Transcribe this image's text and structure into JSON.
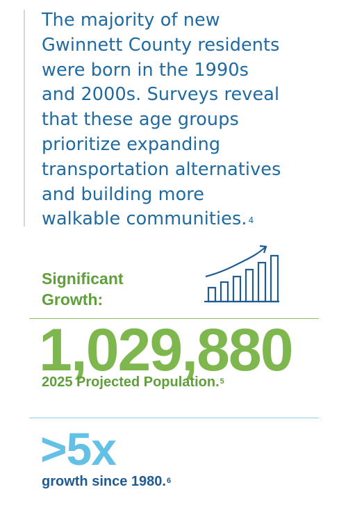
{
  "intro": {
    "lines": [
      "The majority of new",
      "Gwinnett County residents",
      "were born in the 1990s",
      "and 2000s. Surveys reveal",
      "that these age groups",
      "prioritize expanding",
      "transportation alternatives",
      "and building more",
      "walkable communities."
    ],
    "footnote": "4"
  },
  "growth": {
    "label_line1": "Significant",
    "label_line2": "Growth:",
    "icon": "bar-chart-rising-arrow-icon"
  },
  "population": {
    "value": "1,029,880",
    "caption": "2025 Projected Population.",
    "footnote": "5"
  },
  "multiplier": {
    "value": ">5x",
    "caption": "growth since 1980.",
    "footnote": "6"
  },
  "colors": {
    "intro_text": "#1e6aa1",
    "green_dark": "#5e9f3a",
    "green_light": "#7fb74f",
    "blue_light": "#63c1e6",
    "blue_dark": "#1e5b93",
    "icon_stroke": "#1e5b93"
  }
}
